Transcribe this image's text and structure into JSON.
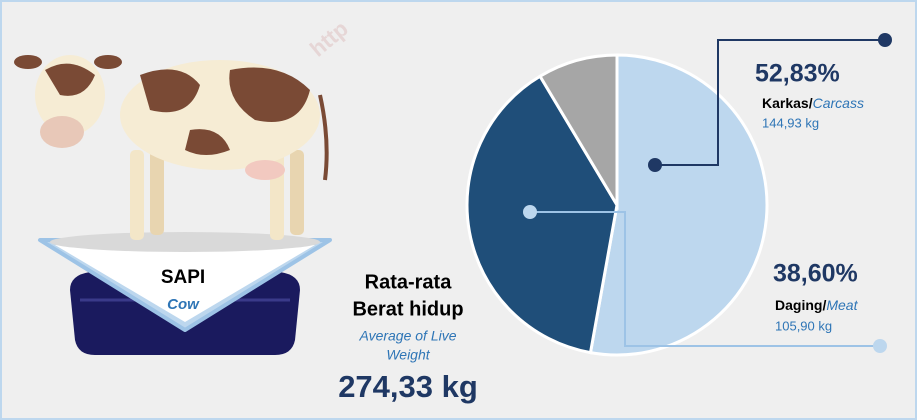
{
  "watermark": "http",
  "animal": {
    "name": "SAPI",
    "name_en": "Cow"
  },
  "live_weight": {
    "title_line1": "Rata-rata",
    "title_line2": "Berat hidup",
    "title_en_line1": "Average of Live",
    "title_en_line2": "Weight",
    "value_label": "274,33 kg"
  },
  "chart_data": {
    "type": "pie",
    "categories": [
      "Karkas/",
      "Daging/",
      null
    ],
    "categories_en": [
      "Carcass",
      "Meat",
      null
    ],
    "values": [
      52.83,
      38.6,
      8.57
    ],
    "value_labels": [
      "52,83%",
      "38,60%",
      null
    ],
    "weight_labels": [
      "144,93 kg",
      "105,90 kg",
      null
    ],
    "colors": [
      "#bdd7ee",
      "#1f4e79",
      "#a6a6a6"
    ]
  }
}
